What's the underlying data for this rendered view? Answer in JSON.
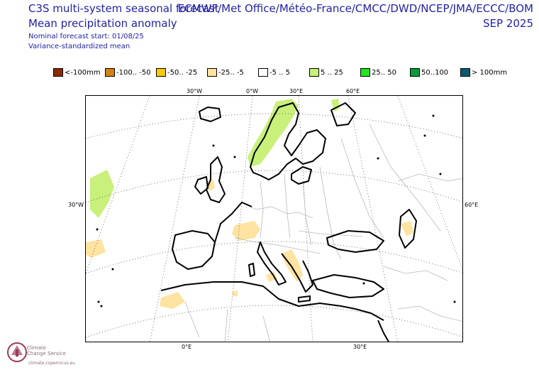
{
  "header": {
    "title": "C3S multi-system seasonal forecast",
    "subtitle": "Mean precipitation anomaly",
    "start": "Nominal forecast start: 01/08/25",
    "method": "Variance-standardized mean",
    "centres": "ECMWF/Met Office/Météo-France/CMCC/DWD/NCEP/JMA/ECCC/BOM",
    "month": "SEP 2025"
  },
  "legend": [
    {
      "label": "<-100mm",
      "color": "#8b2a00"
    },
    {
      "label": "-100.. -50",
      "color": "#d4820f"
    },
    {
      "label": "-50.. -25",
      "color": "#ffc800"
    },
    {
      "label": "-25.. -5",
      "color": "#ffe3a0"
    },
    {
      "label": "-5 .. 5",
      "color": "#ffffff"
    },
    {
      "label": "5 .. 25",
      "color": "#c8f07a"
    },
    {
      "label": "25.. 50",
      "color": "#1ee61e"
    },
    {
      "label": "50..100",
      "color": "#0a9a3a"
    },
    {
      "label": "> 100mm",
      "color": "#0a5a6e"
    }
  ],
  "axes": {
    "top": [
      "30°W",
      "0°W",
      "30°E",
      "60°E"
    ],
    "left": "30°W",
    "right": "60°E",
    "bottom": [
      "0°E",
      "30°E"
    ]
  },
  "logo": {
    "line1": "Climate",
    "line2": "Change Service",
    "url": "climate.copernicus.eu"
  },
  "colors": {
    "title": "#2222aa",
    "wet_light": "#c8f07a",
    "dry_light": "#ffe3a0"
  }
}
